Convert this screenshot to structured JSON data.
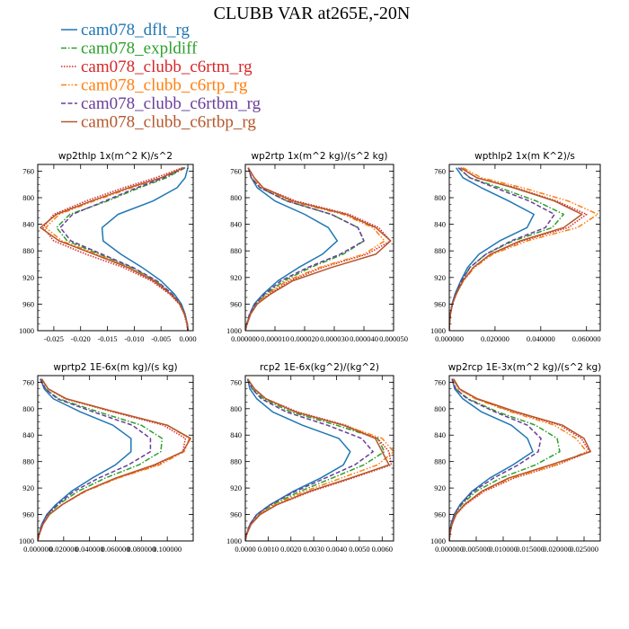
{
  "figure": {
    "title": "CLUBB VAR at265E,-20N"
  },
  "legend": [
    {
      "name": "cam078_dflt_rg",
      "color": "#1f77b4",
      "dash": "solid"
    },
    {
      "name": "cam078_expldiff",
      "color": "#2ca02c",
      "dash": "dashdot"
    },
    {
      "name": "cam078_clubb_c6rtm_rg",
      "color": "#d62728",
      "dash": "dotted"
    },
    {
      "name": "cam078_clubb_c6rtp_rg",
      "color": "#ff7f0e",
      "dash": "dashdotdot"
    },
    {
      "name": "cam078_clubb_c6rtbm_rg",
      "color": "#6a3d9a",
      "dash": "dashed"
    },
    {
      "name": "cam078_clubb_c6rtbp_rg",
      "color": "#b5562b",
      "dash": "solid"
    }
  ],
  "chart_data": [
    {
      "type": "line",
      "title": "wp2thlp   1x(m^2 K)/s^2",
      "xlim": [
        -0.028,
        0.001
      ],
      "ylim": [
        1000,
        750
      ],
      "xticks": [
        -0.025,
        -0.02,
        -0.015,
        -0.01,
        -0.005,
        0.0
      ],
      "xtick_labels": [
        "-0.025",
        "-0.020",
        "-0.015",
        "-0.010",
        "-0.005",
        "0.000"
      ],
      "yticks": [
        760,
        800,
        840,
        880,
        920,
        960,
        1000
      ],
      "y": [
        755,
        770,
        785,
        805,
        825,
        845,
        865,
        885,
        905,
        925,
        945,
        960,
        975,
        990,
        1000
      ],
      "series": [
        {
          "name": "cam078_dflt_rg",
          "values": [
            0,
            -0.0005,
            -0.002,
            -0.0065,
            -0.013,
            -0.016,
            -0.0158,
            -0.0125,
            -0.0085,
            -0.005,
            -0.0025,
            -0.0012,
            -0.0005,
            -0.0001,
            0
          ]
        },
        {
          "name": "cam078_expldiff",
          "values": [
            -0.0005,
            -0.004,
            -0.009,
            -0.015,
            -0.022,
            -0.0245,
            -0.0225,
            -0.0165,
            -0.0105,
            -0.006,
            -0.003,
            -0.0014,
            -0.0006,
            -0.0001,
            0
          ]
        },
        {
          "name": "cam078_clubb_c6rtm_rg",
          "values": [
            -0.001,
            -0.006,
            -0.012,
            -0.019,
            -0.025,
            -0.027,
            -0.025,
            -0.019,
            -0.012,
            -0.0068,
            -0.0034,
            -0.0016,
            -0.0007,
            -0.0002,
            0
          ]
        },
        {
          "name": "cam078_clubb_c6rtp_rg",
          "values": [
            -0.0008,
            -0.005,
            -0.0105,
            -0.0175,
            -0.024,
            -0.0265,
            -0.0235,
            -0.017,
            -0.011,
            -0.0062,
            -0.0031,
            -0.0015,
            -0.0006,
            -0.0001,
            0
          ]
        },
        {
          "name": "cam078_clubb_c6rtbm_rg",
          "values": [
            -0.0006,
            -0.0045,
            -0.0095,
            -0.0155,
            -0.0215,
            -0.0238,
            -0.0218,
            -0.016,
            -0.0102,
            -0.0058,
            -0.0029,
            -0.0014,
            -0.0006,
            -0.0001,
            0
          ]
        },
        {
          "name": "cam078_clubb_c6rtbp_rg",
          "values": [
            -0.0008,
            -0.005,
            -0.011,
            -0.018,
            -0.0245,
            -0.0275,
            -0.024,
            -0.0175,
            -0.0112,
            -0.0064,
            -0.0032,
            -0.0015,
            -0.0006,
            -0.0001,
            0
          ]
        }
      ]
    },
    {
      "type": "line",
      "title": "wp2rtp   1x(m^2 kg)/(s^2 kg)",
      "xlim": [
        0,
        5e-05
      ],
      "ylim": [
        1000,
        750
      ],
      "xticks": [
        0,
        1e-05,
        2e-05,
        3e-05,
        4e-05,
        5e-05
      ],
      "xtick_labels": [
        "0.000000",
        "0.000010",
        "0.000020",
        "0.000030",
        "0.000040",
        "0.000050"
      ],
      "yticks": [
        760,
        800,
        840,
        880,
        920,
        960,
        1000
      ],
      "y": [
        755,
        770,
        785,
        805,
        825,
        845,
        865,
        885,
        905,
        925,
        945,
        960,
        975,
        990,
        1000
      ],
      "series": [
        {
          "name": "cam078_dflt_rg",
          "values": [
            1e-06,
            2e-06,
            4e-06,
            1e-05,
            2e-05,
            2.8e-05,
            3.1e-05,
            2.6e-05,
            1.8e-05,
            1.1e-05,
            6e-06,
            3e-06,
            1.5e-06,
            5e-07,
            0
          ]
        },
        {
          "name": "cam078_expldiff",
          "values": [
            1e-06,
            2e-06,
            5e-06,
            1.4e-05,
            2.9e-05,
            3.8e-05,
            4e-05,
            3.3e-05,
            2.2e-05,
            1.3e-05,
            7e-06,
            3.5e-06,
            1.5e-06,
            5e-07,
            0
          ]
        },
        {
          "name": "cam078_clubb_c6rtm_rg",
          "values": [
            1e-06,
            3e-06,
            6e-06,
            1.7e-05,
            3.5e-05,
            4.5e-05,
            4.9e-05,
            4.1e-05,
            2.6e-05,
            1.5e-05,
            8e-06,
            4e-06,
            1.8e-06,
            6e-07,
            0
          ]
        },
        {
          "name": "cam078_clubb_c6rtp_rg",
          "values": [
            1e-06,
            2e-06,
            5.5e-06,
            1.5e-05,
            3.3e-05,
            4.3e-05,
            4.7e-05,
            4e-05,
            2.5e-05,
            1.4e-05,
            7.5e-06,
            3.8e-06,
            1.6e-06,
            5e-07,
            0
          ]
        },
        {
          "name": "cam078_clubb_c6rtbm_rg",
          "values": [
            1e-06,
            2e-06,
            5e-06,
            1.4e-05,
            2.9e-05,
            3.8e-05,
            4e-05,
            3.2e-05,
            2.1e-05,
            1.2e-05,
            6.5e-06,
            3.3e-06,
            1.4e-06,
            5e-07,
            0
          ]
        },
        {
          "name": "cam078_clubb_c6rtbp_rg",
          "values": [
            1e-06,
            3e-06,
            6e-06,
            1.6e-05,
            3.4e-05,
            4.4e-05,
            4.9e-05,
            4.4e-05,
            2.9e-05,
            1.6e-05,
            8.5e-06,
            4e-06,
            1.8e-06,
            6e-07,
            0
          ]
        }
      ]
    },
    {
      "type": "line",
      "title": "wpthlp2   1x(m K^2)/s",
      "xlim": [
        0,
        0.066
      ],
      "ylim": [
        1000,
        750
      ],
      "xticks": [
        0,
        0.02,
        0.04,
        0.06
      ],
      "xtick_labels": [
        "0.000000",
        "0.020000",
        "0.040000",
        "0.060000"
      ],
      "yticks": [
        760,
        800,
        840,
        880,
        920,
        960,
        1000
      ],
      "y": [
        755,
        770,
        785,
        805,
        825,
        845,
        865,
        885,
        905,
        925,
        945,
        960,
        975,
        990,
        1000
      ],
      "series": [
        {
          "name": "cam078_dflt_rg",
          "values": [
            0.003,
            0.006,
            0.014,
            0.026,
            0.037,
            0.034,
            0.022,
            0.013,
            0.008,
            0.005,
            0.0025,
            0.0012,
            0.0005,
            0.0001,
            0
          ]
        },
        {
          "name": "cam078_expldiff",
          "values": [
            0.004,
            0.009,
            0.022,
            0.038,
            0.05,
            0.045,
            0.028,
            0.016,
            0.009,
            0.0055,
            0.0028,
            0.0013,
            0.0005,
            0.0001,
            0
          ]
        },
        {
          "name": "cam078_clubb_c6rtm_rg",
          "values": [
            0.005,
            0.012,
            0.029,
            0.047,
            0.06,
            0.052,
            0.032,
            0.018,
            0.0105,
            0.006,
            0.003,
            0.0014,
            0.0005,
            0.0001,
            0
          ]
        },
        {
          "name": "cam078_clubb_c6rtp_rg",
          "values": [
            0.006,
            0.014,
            0.032,
            0.052,
            0.065,
            0.056,
            0.034,
            0.019,
            0.011,
            0.0062,
            0.0031,
            0.0014,
            0.0005,
            0.0001,
            0
          ]
        },
        {
          "name": "cam078_clubb_c6rtbm_rg",
          "values": [
            0.004,
            0.009,
            0.02,
            0.035,
            0.046,
            0.042,
            0.027,
            0.016,
            0.009,
            0.0054,
            0.0027,
            0.0013,
            0.0005,
            0.0001,
            0
          ]
        },
        {
          "name": "cam078_clubb_c6rtbp_rg",
          "values": [
            0.005,
            0.012,
            0.028,
            0.046,
            0.058,
            0.05,
            0.031,
            0.018,
            0.0105,
            0.006,
            0.003,
            0.0014,
            0.0005,
            0.0001,
            0
          ]
        }
      ]
    },
    {
      "type": "line",
      "title": "wprtp2   1E-6x(m kg)/(s kg)",
      "xlim": [
        0,
        0.12
      ],
      "ylim": [
        1000,
        750
      ],
      "xticks": [
        0,
        0.02,
        0.04,
        0.06,
        0.08,
        0.1
      ],
      "xtick_labels": [
        "0.000000",
        "0.020000",
        "0.040000",
        "0.060000",
        "0.080000",
        "0.100000"
      ],
      "yticks": [
        760,
        800,
        840,
        880,
        920,
        960,
        1000
      ],
      "y": [
        755,
        770,
        785,
        805,
        825,
        845,
        865,
        885,
        905,
        925,
        945,
        960,
        975,
        990,
        1000
      ],
      "series": [
        {
          "name": "cam078_dflt_rg",
          "values": [
            0.002,
            0.005,
            0.012,
            0.033,
            0.058,
            0.072,
            0.072,
            0.06,
            0.042,
            0.026,
            0.014,
            0.007,
            0.003,
            0.001,
            0
          ]
        },
        {
          "name": "cam078_expldiff",
          "values": [
            0.002,
            0.006,
            0.016,
            0.047,
            0.08,
            0.096,
            0.095,
            0.078,
            0.052,
            0.031,
            0.016,
            0.008,
            0.0035,
            0.001,
            0
          ]
        },
        {
          "name": "cam078_clubb_c6rtm_rg",
          "values": [
            0.003,
            0.008,
            0.021,
            0.058,
            0.097,
            0.114,
            0.112,
            0.092,
            0.061,
            0.036,
            0.019,
            0.009,
            0.004,
            0.0012,
            0
          ]
        },
        {
          "name": "cam078_clubb_c6rtp_rg",
          "values": [
            0.003,
            0.008,
            0.022,
            0.06,
            0.1,
            0.117,
            0.113,
            0.094,
            0.062,
            0.037,
            0.019,
            0.009,
            0.004,
            0.0012,
            0
          ]
        },
        {
          "name": "cam078_clubb_c6rtbm_rg",
          "values": [
            0.002,
            0.006,
            0.015,
            0.043,
            0.073,
            0.087,
            0.087,
            0.07,
            0.047,
            0.028,
            0.015,
            0.0072,
            0.0032,
            0.001,
            0
          ]
        },
        {
          "name": "cam078_clubb_c6rtbp_rg",
          "values": [
            0.003,
            0.008,
            0.022,
            0.06,
            0.1,
            0.118,
            0.112,
            0.09,
            0.06,
            0.036,
            0.019,
            0.009,
            0.004,
            0.0012,
            0
          ]
        }
      ]
    },
    {
      "type": "line",
      "title": "rcp2   1E-6x(kg^2)/(kg^2)",
      "xlim": [
        0,
        0.0065
      ],
      "ylim": [
        1000,
        750
      ],
      "xticks": [
        0,
        0.001,
        0.002,
        0.003,
        0.004,
        0.005,
        0.006
      ],
      "xtick_labels": [
        "0.0000",
        "0.0010",
        "0.0020",
        "0.0030",
        "0.0040",
        "0.0050",
        "0.0060"
      ],
      "yticks": [
        760,
        800,
        840,
        880,
        920,
        960,
        1000
      ],
      "y": [
        755,
        770,
        785,
        805,
        825,
        845,
        865,
        885,
        905,
        925,
        945,
        960,
        975,
        990,
        1000
      ],
      "series": [
        {
          "name": "cam078_dflt_rg",
          "values": [
            0.0001,
            0.0002,
            0.0005,
            0.0012,
            0.0025,
            0.0041,
            0.0046,
            0.0043,
            0.0033,
            0.0021,
            0.0011,
            0.0005,
            0.0002,
            5e-05,
            0
          ]
        },
        {
          "name": "cam078_expldiff",
          "values": [
            0.0001,
            0.0003,
            0.0008,
            0.002,
            0.004,
            0.0058,
            0.0061,
            0.0052,
            0.0038,
            0.0024,
            0.0012,
            0.0006,
            0.00022,
            5e-05,
            0
          ]
        },
        {
          "name": "cam078_clubb_c6rtm_rg",
          "values": [
            0.0001,
            0.0004,
            0.0009,
            0.0023,
            0.0044,
            0.0058,
            0.0063,
            0.0064,
            0.0047,
            0.0029,
            0.0014,
            0.00065,
            0.00025,
            6e-05,
            0
          ]
        },
        {
          "name": "cam078_clubb_c6rtp_rg",
          "values": [
            0.0001,
            0.0004,
            0.0009,
            0.0022,
            0.0043,
            0.006,
            0.0065,
            0.0058,
            0.0042,
            0.0026,
            0.0013,
            0.0006,
            0.00023,
            5e-05,
            0
          ]
        },
        {
          "name": "cam078_clubb_c6rtbm_rg",
          "values": [
            0.0001,
            0.0003,
            0.0007,
            0.0018,
            0.0036,
            0.0051,
            0.0056,
            0.0048,
            0.0035,
            0.0022,
            0.0011,
            0.0005,
            0.0002,
            5e-05,
            0
          ]
        },
        {
          "name": "cam078_clubb_c6rtbp_rg",
          "values": [
            0.0001,
            0.0004,
            0.0009,
            0.0022,
            0.0043,
            0.0057,
            0.006,
            0.0063,
            0.0046,
            0.0028,
            0.0014,
            0.00065,
            0.00025,
            6e-05,
            0
          ]
        }
      ]
    },
    {
      "type": "line",
      "title": "wp2rcp   1E-3x(m^2 kg)/(s^2 kg)",
      "xlim": [
        0,
        0.028
      ],
      "ylim": [
        1000,
        750
      ],
      "xticks": [
        0,
        0.005,
        0.01,
        0.015,
        0.02,
        0.025
      ],
      "xtick_labels": [
        "0.000000",
        "0.005000",
        "0.010000",
        "0.015000",
        "0.020000",
        "0.025000"
      ],
      "yticks": [
        760,
        800,
        840,
        880,
        920,
        960,
        1000
      ],
      "y": [
        755,
        770,
        785,
        805,
        825,
        845,
        865,
        885,
        905,
        925,
        945,
        960,
        975,
        990,
        1000
      ],
      "series": [
        {
          "name": "cam078_dflt_rg",
          "values": [
            0.0005,
            0.001,
            0.0025,
            0.006,
            0.0115,
            0.0145,
            0.0155,
            0.0118,
            0.0075,
            0.0042,
            0.002,
            0.0009,
            0.0003,
            0.0001,
            0
          ]
        },
        {
          "name": "cam078_expldiff",
          "values": [
            0.0005,
            0.0012,
            0.0035,
            0.009,
            0.016,
            0.02,
            0.0205,
            0.016,
            0.0095,
            0.005,
            0.0023,
            0.001,
            0.0004,
            0.0001,
            0
          ]
        },
        {
          "name": "cam078_clubb_c6rtm_rg",
          "values": [
            0.0007,
            0.0018,
            0.005,
            0.012,
            0.0205,
            0.0245,
            0.026,
            0.02,
            0.012,
            0.0065,
            0.003,
            0.0013,
            0.0005,
            0.0001,
            0
          ]
        },
        {
          "name": "cam078_clubb_c6rtp_rg",
          "values": [
            0.0007,
            0.0017,
            0.0048,
            0.0115,
            0.0195,
            0.0235,
            0.0255,
            0.0198,
            0.0115,
            0.0062,
            0.0029,
            0.0012,
            0.0005,
            0.0001,
            0
          ]
        },
        {
          "name": "cam078_clubb_c6rtbm_rg",
          "values": [
            0.0005,
            0.0012,
            0.0033,
            0.0085,
            0.0145,
            0.017,
            0.0165,
            0.0128,
            0.0082,
            0.0045,
            0.0021,
            0.0009,
            0.0004,
            0.0001,
            0
          ]
        },
        {
          "name": "cam078_clubb_c6rtbp_rg",
          "values": [
            0.0008,
            0.0019,
            0.0052,
            0.0125,
            0.021,
            0.025,
            0.0262,
            0.0188,
            0.011,
            0.006,
            0.0028,
            0.0012,
            0.0005,
            0.0001,
            0
          ]
        }
      ]
    }
  ]
}
